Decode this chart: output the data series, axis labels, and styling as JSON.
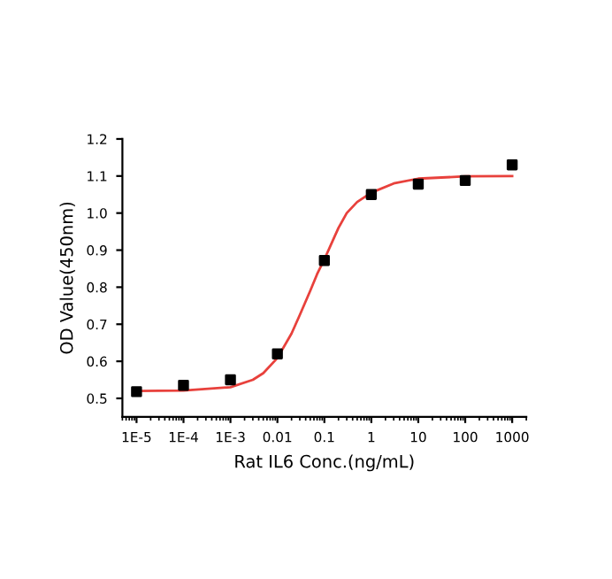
{
  "chart_data": {
    "type": "scatter",
    "xlabel": "Rat IL6 Conc.(ng/mL)",
    "ylabel": "OD Value(450nm)",
    "log": "x",
    "grid": false,
    "legend": false,
    "series": [
      {
        "marker": "square",
        "color": "#000000",
        "x": [
          1e-05,
          0.0001,
          0.001,
          0.01,
          0.1,
          1,
          10,
          100,
          1000
        ],
        "values": [
          0.518,
          0.535,
          0.55,
          0.62,
          0.872,
          1.05,
          1.078,
          1.088,
          1.13
        ]
      },
      {
        "type": "line",
        "marker": "none",
        "color": "#e8413c",
        "x": [
          1e-05,
          0.0001,
          0.001,
          0.003,
          0.005,
          0.01,
          0.02,
          0.03,
          0.05,
          0.07,
          0.1,
          0.15,
          0.2,
          0.3,
          0.5,
          1,
          3,
          10,
          100,
          1000
        ],
        "values": [
          0.52,
          0.521,
          0.53,
          0.55,
          0.568,
          0.609,
          0.675,
          0.725,
          0.79,
          0.835,
          0.875,
          0.925,
          0.96,
          1.0,
          1.03,
          1.055,
          1.08,
          1.093,
          1.099,
          1.1
        ]
      }
    ],
    "xlim": [
      5e-06,
      2000
    ],
    "xticks": [
      {
        "value": 1e-05,
        "label": "1E-5"
      },
      {
        "value": 0.0001,
        "label": "1E-4"
      },
      {
        "value": 0.001,
        "label": "1E-3"
      },
      0.01,
      0.1,
      1,
      10,
      100,
      1000
    ],
    "ylim": [
      0.45,
      1.2
    ],
    "yticks": [
      0.5,
      0.6,
      0.7,
      0.8,
      0.9,
      {
        "value": 1.0,
        "label": "1.0"
      },
      1.1,
      1.2
    ]
  }
}
